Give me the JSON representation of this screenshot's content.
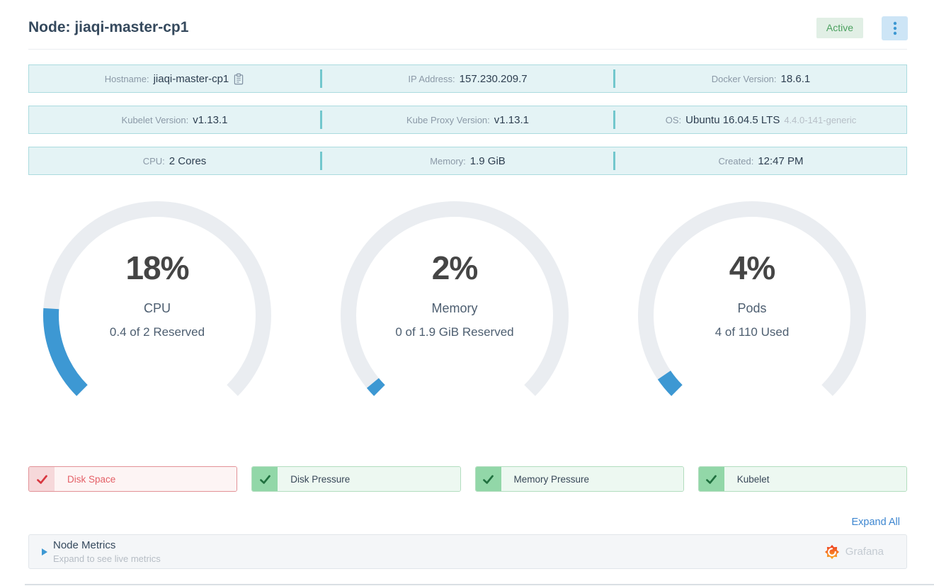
{
  "header": {
    "title": "Node: jiaqi-master-cp1",
    "status": "Active",
    "menu_icon": "vertical-ellipsis-icon"
  },
  "info_rows": [
    {
      "cells": [
        {
          "label": "Hostname:",
          "value": "jiaqi-master-cp1"
        },
        {
          "label": "IP Address:",
          "value": "157.230.209.7"
        },
        {
          "label": "Docker Version:",
          "value": "18.6.1"
        }
      ]
    },
    {
      "cells": [
        {
          "label": "Kubelet Version:",
          "value": "v1.13.1"
        },
        {
          "label": "Kube Proxy Version:",
          "value": "v1.13.1"
        },
        {
          "label": "OS:",
          "value": "Ubuntu 16.04.5 LTS",
          "extra": "4.4.0-141-generic"
        }
      ]
    },
    {
      "cells": [
        {
          "label": "CPU:",
          "value": "2 Cores"
        },
        {
          "label": "Memory:",
          "value": "1.9 GiB"
        },
        {
          "label": "Created:",
          "value": "12:47 PM"
        }
      ]
    }
  ],
  "chart_data": {
    "type": "gauge-set",
    "gauges_note": "three 270-degree donut gauges, gap at bottom, fill starts at bottom-left"
  },
  "gauges": [
    {
      "percent": 18,
      "percent_label": "18%",
      "label": "CPU",
      "detail": "0.4 of 2 Reserved"
    },
    {
      "percent": 2,
      "percent_label": "2%",
      "label": "Memory",
      "detail": "0 of 1.9 GiB Reserved"
    },
    {
      "percent": 4,
      "percent_label": "4%",
      "label": "Pods",
      "detail": "4 of 110 Used"
    }
  ],
  "conditions": [
    {
      "label": "Disk Space",
      "state": "error",
      "icon": "check-icon"
    },
    {
      "label": "Disk Pressure",
      "state": "ok",
      "icon": "check-icon"
    },
    {
      "label": "Memory Pressure",
      "state": "ok",
      "icon": "check-icon"
    },
    {
      "label": "Kubelet",
      "state": "ok",
      "icon": "check-icon"
    }
  ],
  "expand_all_label": "Expand All",
  "metrics_panel": {
    "title": "Node Metrics",
    "subtitle": "Expand to see live metrics",
    "provider": "Grafana",
    "caret_icon": "expand-caret-icon",
    "provider_icon": "grafana-flame-icon"
  },
  "colors": {
    "accent_blue": "#3d98d3",
    "gauge_track": "#eaedf1",
    "gauge_fill": "#3d98d3",
    "info_row_bg": "#e4f3f5",
    "divider_teal": "#72c7cd",
    "active_badge_bg": "#e1efe5",
    "active_badge_text": "#4ba15f",
    "error_red": "#d8363f",
    "ok_green": "#20703f",
    "link_blue": "#3d86d0"
  }
}
